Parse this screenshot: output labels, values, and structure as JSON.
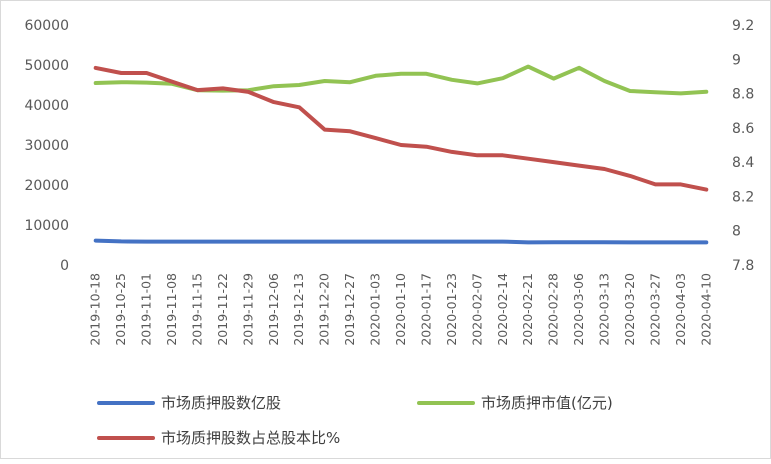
{
  "chart_data": {
    "type": "line",
    "title": "",
    "x": [
      "2019-10-18",
      "2019-10-25",
      "2019-11-01",
      "2019-11-08",
      "2019-11-15",
      "2019-11-22",
      "2019-11-29",
      "2019-12-06",
      "2019-12-13",
      "2019-12-20",
      "2019-12-27",
      "2020-01-03",
      "2020-01-10",
      "2020-01-17",
      "2020-01-23",
      "2020-02-07",
      "2020-02-14",
      "2020-02-21",
      "2020-02-28",
      "2020-03-06",
      "2020-03-13",
      "2020-03-20",
      "2020-03-27",
      "2020-04-03",
      "2020-04-10"
    ],
    "y_left": {
      "ylim": [
        0,
        60000
      ],
      "ticks": [
        "0",
        "10000",
        "20000",
        "30000",
        "40000",
        "50000",
        "60000"
      ]
    },
    "y_right": {
      "ylim": [
        7.8,
        9.2
      ],
      "ticks": [
        "7.8",
        "8",
        "8.2",
        "8.4",
        "8.6",
        "8.8",
        "9",
        "9.2"
      ]
    },
    "series": [
      {
        "name": "市场质押股数亿股",
        "axis": "left",
        "color": "#4472c4",
        "values": [
          6100,
          5900,
          5850,
          5850,
          5850,
          5850,
          5850,
          5850,
          5850,
          5850,
          5850,
          5850,
          5850,
          5850,
          5850,
          5850,
          5850,
          5650,
          5700,
          5700,
          5700,
          5650,
          5650,
          5650,
          5650
        ]
      },
      {
        "name": "市场质押市值(亿元)",
        "axis": "left",
        "color": "#92c353",
        "values": [
          45500,
          45700,
          45600,
          45300,
          43700,
          43600,
          43700,
          44700,
          45000,
          46000,
          45700,
          47300,
          47800,
          47800,
          46300,
          45400,
          46700,
          49600,
          46600,
          49300,
          46000,
          43500,
          43200,
          42900,
          43300
        ]
      },
      {
        "name": "市场质押股数占总股本比%",
        "axis": "right",
        "color": "#c0504d",
        "values": [
          8.95,
          8.92,
          8.92,
          8.87,
          8.82,
          8.83,
          8.81,
          8.75,
          8.72,
          8.59,
          8.58,
          8.54,
          8.5,
          8.49,
          8.46,
          8.44,
          8.44,
          8.42,
          8.4,
          8.38,
          8.36,
          8.32,
          8.27,
          8.27,
          8.24
        ]
      }
    ],
    "legend": "bottom"
  }
}
